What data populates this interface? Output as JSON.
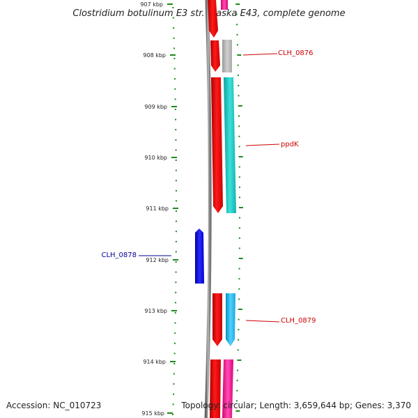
{
  "title": "Clostridium botulinum E3 str. Alaska E43, complete genome",
  "accession_text": "Accession: NC_010723",
  "summary_text": "Topology: circular; Length: 3,659,644 bp; Genes: 3,370",
  "ruler": {
    "labels": [
      "907 kbp",
      "908 kbp",
      "909 kbp",
      "910 kbp",
      "911 kbp",
      "912 kbp",
      "913 kbp",
      "914 kbp",
      "915 kbp"
    ],
    "tick_color": "#1a8a1a"
  },
  "genes": [
    {
      "name": "CLH_0876",
      "color": "#cc0000",
      "fill": "#bbbbbb"
    },
    {
      "name": "ppdK",
      "color": "#cc0000",
      "fill": "#1cc9c4"
    },
    {
      "name": "CLH_0878",
      "color": "#000099",
      "fill": "#0000ee"
    },
    {
      "name": "CLH_0879",
      "color": "#cc0000",
      "fill": "#1fb8ea"
    }
  ],
  "colors": {
    "cds": "#ee0000",
    "magenta_gene": "#ff2da0",
    "backbone": "#888888"
  }
}
